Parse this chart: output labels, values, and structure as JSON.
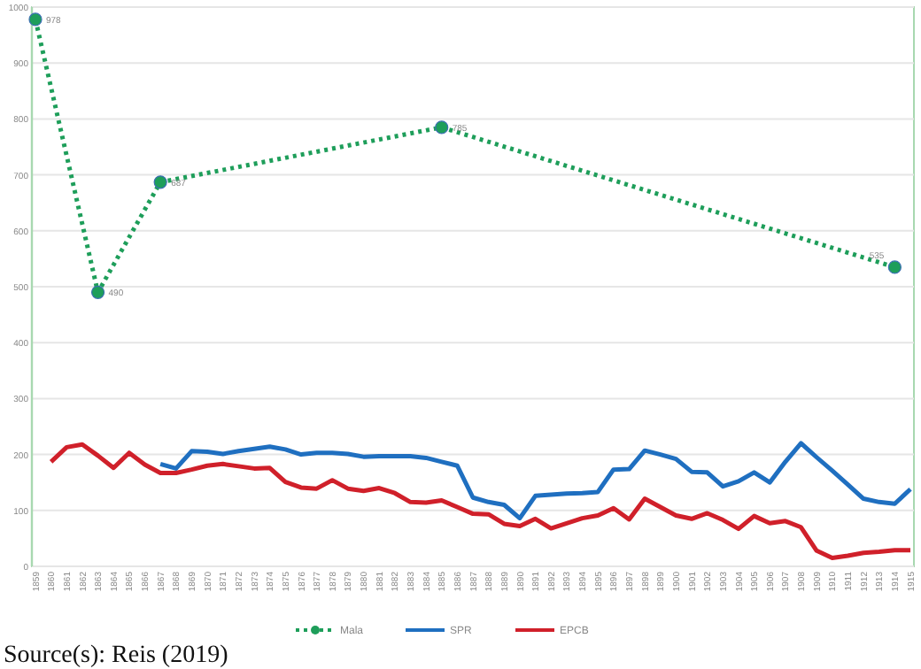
{
  "chart_data": {
    "type": "line",
    "categories": [
      "1859",
      "1860",
      "1861",
      "1862",
      "1863",
      "1864",
      "1865",
      "1866",
      "1867",
      "1868",
      "1869",
      "1870",
      "1871",
      "1872",
      "1873",
      "1874",
      "1875",
      "1876",
      "1877",
      "1878",
      "1879",
      "1880",
      "1881",
      "1882",
      "1883",
      "1884",
      "1885",
      "1886",
      "1887",
      "1888",
      "1889",
      "1890",
      "1891",
      "1892",
      "1893",
      "1894",
      "1895",
      "1896",
      "1897",
      "1898",
      "1899",
      "1900",
      "1901",
      "1902",
      "1903",
      "1904",
      "1905",
      "1906",
      "1907",
      "1908",
      "1909",
      "1910",
      "1911",
      "1912",
      "1913",
      "1914",
      "1915"
    ],
    "series": [
      {
        "name": "Mala",
        "color": "#1e9e5a",
        "marker": "circle",
        "line_style": "dotted",
        "values": [
          978,
          null,
          null,
          null,
          490,
          null,
          null,
          null,
          687,
          null,
          null,
          null,
          null,
          null,
          null,
          null,
          null,
          null,
          null,
          null,
          null,
          null,
          null,
          null,
          null,
          null,
          785,
          null,
          null,
          null,
          null,
          null,
          null,
          null,
          null,
          null,
          null,
          null,
          null,
          null,
          null,
          null,
          null,
          null,
          null,
          null,
          null,
          null,
          null,
          null,
          null,
          null,
          null,
          null,
          null,
          535,
          null
        ],
        "value_labels": [
          "978",
          null,
          null,
          null,
          "490",
          null,
          null,
          null,
          "687",
          null,
          null,
          null,
          null,
          null,
          null,
          null,
          null,
          null,
          null,
          null,
          null,
          null,
          null,
          null,
          null,
          null,
          "785",
          null,
          null,
          null,
          null,
          null,
          null,
          null,
          null,
          null,
          null,
          null,
          null,
          null,
          null,
          null,
          null,
          null,
          null,
          null,
          null,
          null,
          null,
          null,
          null,
          null,
          null,
          null,
          null,
          "535",
          null
        ]
      },
      {
        "name": "SPR",
        "color": "#1f6fc0",
        "marker": "none",
        "line_style": "solid",
        "values": [
          null,
          null,
          null,
          null,
          null,
          null,
          null,
          null,
          183,
          175,
          206,
          205,
          201,
          206,
          210,
          214,
          209,
          200,
          203,
          203,
          201,
          196,
          197,
          197,
          197,
          194,
          187,
          180,
          123,
          115,
          110,
          86,
          126,
          128,
          130,
          131,
          133,
          173,
          174,
          207,
          200,
          192,
          169,
          168,
          143,
          152,
          168,
          150,
          187,
          220,
          195,
          171,
          146,
          121,
          115,
          112,
          138
        ]
      },
      {
        "name": "EPCB",
        "color": "#d0202a",
        "marker": "none",
        "line_style": "solid",
        "values": [
          null,
          187,
          213,
          218,
          198,
          176,
          203,
          182,
          167,
          167,
          173,
          180,
          183,
          179,
          175,
          176,
          151,
          141,
          139,
          154,
          139,
          135,
          140,
          131,
          115,
          114,
          118,
          106,
          94,
          93,
          76,
          72,
          85,
          68,
          77,
          86,
          91,
          104,
          84,
          121,
          106,
          91,
          85,
          95,
          83,
          67,
          90,
          77,
          81,
          70,
          28,
          15,
          19,
          24,
          26,
          29,
          29
        ]
      }
    ],
    "ylim": [
      0,
      1000
    ],
    "yticks": [
      0,
      100,
      200,
      300,
      400,
      500,
      600,
      700,
      800,
      900,
      1000
    ],
    "grid": "y",
    "legend": "bottom",
    "annotations": [
      "Source(s): Reis (2019)"
    ]
  }
}
